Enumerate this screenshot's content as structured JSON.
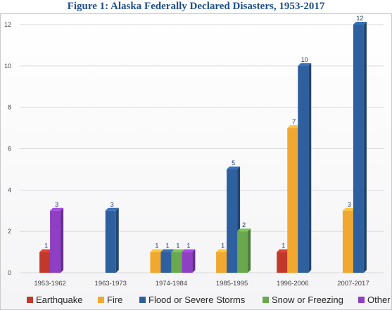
{
  "title": "Figure 1: Alaska Federally Declared Disasters, 1953-2017",
  "chart_data": {
    "type": "bar",
    "title": "Figure 1: Alaska Federally Declared Disasters, 1953-2017",
    "xlabel": "",
    "ylabel": "",
    "ylim": [
      0,
      12
    ],
    "yticks": [
      0,
      2,
      4,
      6,
      8,
      10,
      12
    ],
    "grid": true,
    "legend_position": "bottom",
    "categories": [
      "1953-1962",
      "1963-1973",
      "1974-1984",
      "1985-1995",
      "1996-2006",
      "2007-2017"
    ],
    "series": [
      {
        "name": "Earthquake",
        "color": "#c0392b",
        "values": [
          1,
          null,
          null,
          null,
          1,
          null
        ]
      },
      {
        "name": "Fire",
        "color": "#f0a830",
        "values": [
          null,
          null,
          1,
          1,
          7,
          3
        ]
      },
      {
        "name": "Flood or Severe Storms",
        "color": "#2e5f9e",
        "values": [
          null,
          3,
          1,
          5,
          10,
          12
        ]
      },
      {
        "name": "Snow or Freezing",
        "color": "#6aa84f",
        "values": [
          null,
          null,
          1,
          2,
          null,
          null
        ]
      },
      {
        "name": "Other",
        "color": "#8e3fc4",
        "values": [
          3,
          null,
          1,
          null,
          null,
          null
        ]
      }
    ]
  }
}
